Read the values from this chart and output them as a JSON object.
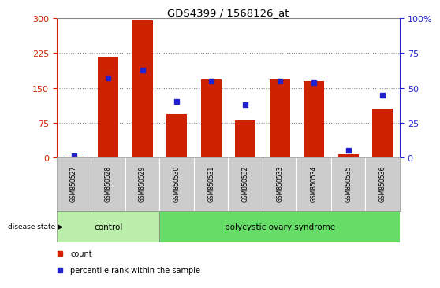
{
  "title": "GDS4399 / 1568126_at",
  "samples": [
    "GSM850527",
    "GSM850528",
    "GSM850529",
    "GSM850530",
    "GSM850531",
    "GSM850532",
    "GSM850533",
    "GSM850534",
    "GSM850535",
    "GSM850536"
  ],
  "counts": [
    2,
    218,
    295,
    93,
    168,
    80,
    168,
    165,
    8,
    105
  ],
  "percentiles": [
    1,
    57,
    63,
    40,
    55,
    38,
    55,
    54,
    5,
    45
  ],
  "bar_color": "#cc2200",
  "dot_color": "#2222cc",
  "ylim_left": [
    0,
    300
  ],
  "ylim_right": [
    0,
    100
  ],
  "yticks_left": [
    0,
    75,
    150,
    225,
    300
  ],
  "yticks_right": [
    0,
    25,
    50,
    75,
    100
  ],
  "grid_color": "#888888",
  "ax_color_left": "#cc2200",
  "ax_color_right": "#2222cc",
  "legend_count_label": "count",
  "legend_pct_label": "percentile rank within the sample",
  "disease_state_label": "disease state",
  "control_count": 3,
  "control_color": "#bbeeaa",
  "poly_color": "#66dd66",
  "ticklabel_bg": "#cccccc"
}
